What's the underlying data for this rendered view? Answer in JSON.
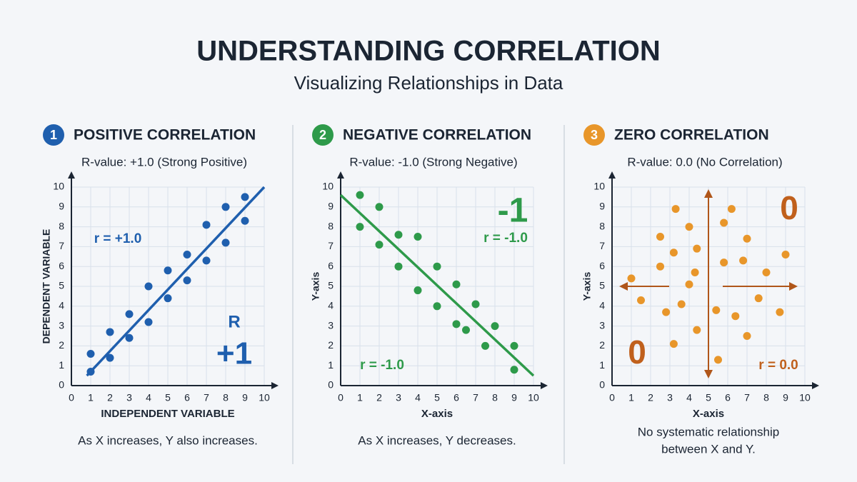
{
  "title": "UNDERSTANDING CORRELATION",
  "subtitle": "Visualizing Relationships in Data",
  "chart_data": [
    {
      "type": "scatter",
      "number": "1",
      "heading": "POSITIVE CORRELATION",
      "r_value": "R-value: +1.0 (Strong Positive)",
      "caption": [
        "As X increases, Y also increases."
      ],
      "xlabel": "INDEPENDENT VARIABLE",
      "ylabel": "DEPENDENT VARIABLE",
      "color": "#1f5fae",
      "x": [
        1,
        1,
        2,
        2,
        3,
        3,
        4,
        4,
        5,
        5,
        6,
        6,
        7,
        7,
        8,
        8,
        9,
        9
      ],
      "values": [
        1.6,
        0.7,
        2.7,
        1.4,
        3.6,
        2.4,
        5.0,
        3.2,
        5.8,
        4.4,
        6.6,
        5.3,
        8.1,
        6.3,
        9.0,
        7.2,
        9.5,
        8.3
      ],
      "line": {
        "x": [
          0.8,
          10
        ],
        "y": [
          0.5,
          10
        ]
      },
      "annotations": [
        "r = +1.0",
        "R",
        "+1"
      ],
      "xlim": [
        0,
        10
      ],
      "ylim": [
        0,
        10
      ],
      "xticks": [
        0,
        1,
        2,
        3,
        4,
        5,
        6,
        7,
        8,
        9,
        10
      ],
      "yticks": [
        0,
        1,
        2,
        3,
        4,
        5,
        6,
        7,
        8,
        9,
        10
      ],
      "grid": true
    },
    {
      "type": "scatter",
      "number": "2",
      "heading": "NEGATIVE CORRELATION",
      "r_value": "R-value: -1.0 (Strong Negative)",
      "caption": [
        "As X increases, Y decreases."
      ],
      "xlabel": "X-axis",
      "ylabel": "Y-axis",
      "color": "#2e9a4a",
      "x": [
        1,
        1,
        2,
        2,
        3,
        3,
        4,
        4,
        5,
        5,
        6,
        6,
        6.5,
        7,
        7.5,
        8,
        9,
        9
      ],
      "values": [
        9.6,
        8.0,
        9.0,
        7.1,
        7.6,
        6.0,
        7.5,
        4.8,
        6.0,
        4.0,
        5.1,
        3.1,
        2.8,
        4.1,
        2.0,
        3.0,
        2.0,
        0.8
      ],
      "line": {
        "x": [
          0,
          10
        ],
        "y": [
          9.6,
          0.5
        ]
      },
      "annotations": [
        "-1",
        "r = -1.0",
        "r = -1.0"
      ],
      "xlim": [
        0,
        10
      ],
      "ylim": [
        0,
        10
      ],
      "xticks": [
        0,
        1,
        2,
        3,
        4,
        5,
        6,
        7,
        8,
        9,
        10
      ],
      "yticks": [
        0,
        1,
        2,
        3,
        4,
        5,
        6,
        7,
        8,
        9,
        10
      ],
      "grid": true
    },
    {
      "type": "scatter",
      "number": "3",
      "heading": "ZERO CORRELATION",
      "r_value": "R-value: 0.0 (No Correlation)",
      "caption": [
        "No systematic relationship",
        "between X and Y."
      ],
      "xlabel": "X-axis",
      "ylabel": "Y-axis",
      "color": "#e8962a",
      "x": [
        1,
        1.5,
        2.5,
        2.5,
        2.8,
        3.2,
        3.3,
        3.2,
        3.6,
        4,
        4,
        4.3,
        4.4,
        4.4,
        5.4,
        5.5,
        5.8,
        5.8,
        6.2,
        6.4,
        6.8,
        7,
        7,
        7.6,
        8,
        8.7,
        9
      ],
      "values": [
        5.4,
        4.3,
        7.5,
        6.0,
        3.7,
        6.7,
        8.9,
        2.1,
        4.1,
        8.0,
        5.1,
        5.7,
        6.9,
        2.8,
        3.8,
        1.3,
        8.2,
        6.2,
        8.9,
        3.5,
        6.3,
        7.4,
        2.5,
        4.4,
        5.7,
        3.7,
        6.6
      ],
      "annotations": [
        "0",
        "0",
        "r = 0.0"
      ],
      "xlim": [
        0,
        10
      ],
      "ylim": [
        0,
        10
      ],
      "xticks": [
        0,
        1,
        2,
        3,
        4,
        5,
        6,
        7,
        8,
        9,
        10
      ],
      "yticks": [
        0,
        1,
        2,
        3,
        4,
        5,
        6,
        7,
        8,
        9,
        10
      ],
      "grid": true
    }
  ]
}
